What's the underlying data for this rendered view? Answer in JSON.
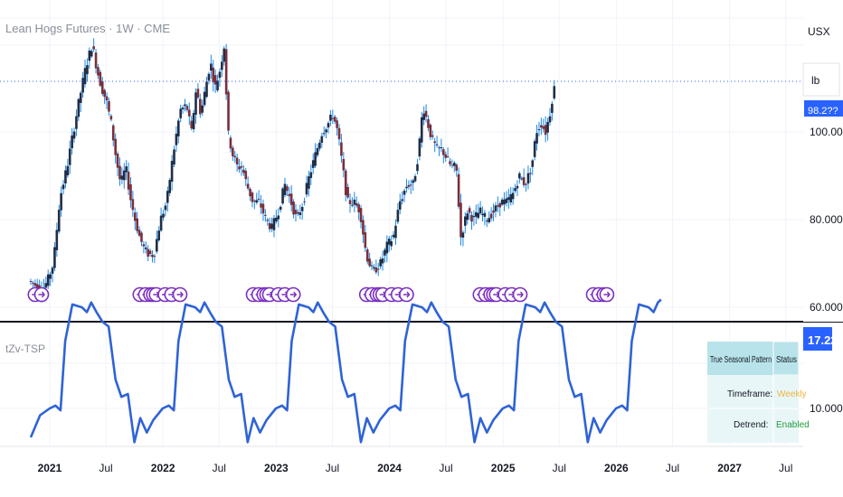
{
  "header": {
    "title": "Lean Hogs Futures · 1W · CME"
  },
  "price_axis": {
    "currency": "USX",
    "unit": "lb",
    "ticks": [
      "100.000",
      "80.000",
      "60.000"
    ],
    "badge": "98.2??"
  },
  "indicator": {
    "label": "tZv-TSP",
    "value_badge": "17.226",
    "ticks": [
      "10.000"
    ]
  },
  "time_axis": {
    "labels": [
      "2021",
      "Jul",
      "2022",
      "Jul",
      "2023",
      "Jul",
      "2024",
      "Jul",
      "2025",
      "Jul",
      "2026",
      "Jul",
      "2027",
      "Jul"
    ]
  },
  "table": {
    "header_col1": "True Seasonal Pattern",
    "header_col2": "Status",
    "rows": [
      {
        "label": "Timeframe:",
        "value": "Weekly",
        "color": "#f0b43c"
      },
      {
        "label": "Detrend:",
        "value": "Enabled",
        "color": "#1f9d3a"
      }
    ]
  },
  "colors": {
    "up_candle": "#1f2d46",
    "down_candle": "#7a2f3a",
    "wick": "#1e88e5",
    "indicator_line": "#2f63d6",
    "marker": "#7b2fbf",
    "badge_bg": "#2962ff"
  },
  "chart_data": [
    {
      "type": "candlestick",
      "title": "Lean Hogs Futures · 1W · CME",
      "yunit": "USX/lb",
      "ylim": [
        56,
        128
      ],
      "x_range": [
        "2020-11-01",
        "2027-07-31"
      ],
      "grid": true,
      "marker_icon": "circled-arrow-icon",
      "marker_count": 38,
      "path": [
        [
          "2020-11-01",
          66
        ],
        [
          "2020-12-15",
          64
        ],
        [
          "2021-01-01",
          66
        ],
        [
          "2021-01-20",
          70
        ],
        [
          "2021-02-10",
          85
        ],
        [
          "2021-03-05",
          92
        ],
        [
          "2021-03-25",
          100
        ],
        [
          "2021-04-15",
          108
        ],
        [
          "2021-05-05",
          115
        ],
        [
          "2021-05-25",
          120
        ],
        [
          "2021-06-10",
          114
        ],
        [
          "2021-06-25",
          110
        ],
        [
          "2021-07-10",
          107
        ],
        [
          "2021-07-25",
          102
        ],
        [
          "2021-08-10",
          94
        ],
        [
          "2021-08-25",
          88
        ],
        [
          "2021-09-10",
          92
        ],
        [
          "2021-09-25",
          85
        ],
        [
          "2021-10-10",
          80
        ],
        [
          "2021-10-25",
          76
        ],
        [
          "2021-11-10",
          73
        ],
        [
          "2021-11-25",
          72
        ],
        [
          "2021-12-10",
          72
        ],
        [
          "2021-12-31",
          80
        ],
        [
          "2022-01-20",
          84
        ],
        [
          "2022-02-10",
          95
        ],
        [
          "2022-03-05",
          105
        ],
        [
          "2022-03-25",
          106
        ],
        [
          "2022-04-10",
          100
        ],
        [
          "2022-04-25",
          110
        ],
        [
          "2022-05-10",
          104
        ],
        [
          "2022-05-25",
          110
        ],
        [
          "2022-06-10",
          116
        ],
        [
          "2022-06-25",
          110
        ],
        [
          "2022-07-10",
          114
        ],
        [
          "2022-07-25",
          120
        ],
        [
          "2022-08-05",
          100
        ],
        [
          "2022-08-20",
          95
        ],
        [
          "2022-09-05",
          92
        ],
        [
          "2022-09-20",
          92
        ],
        [
          "2022-10-05",
          88
        ],
        [
          "2022-10-25",
          84
        ],
        [
          "2022-11-15",
          84
        ],
        [
          "2022-12-05",
          80
        ],
        [
          "2022-12-25",
          78
        ],
        [
          "2023-01-15",
          82
        ],
        [
          "2023-02-05",
          88
        ],
        [
          "2023-02-25",
          84
        ],
        [
          "2023-03-15",
          80
        ],
        [
          "2023-04-05",
          84
        ],
        [
          "2023-04-25",
          90
        ],
        [
          "2023-05-15",
          95
        ],
        [
          "2023-06-05",
          100
        ],
        [
          "2023-06-25",
          102
        ],
        [
          "2023-07-10",
          104
        ],
        [
          "2023-07-25",
          100
        ],
        [
          "2023-08-10",
          92
        ],
        [
          "2023-08-25",
          84
        ],
        [
          "2023-09-15",
          84
        ],
        [
          "2023-10-05",
          82
        ],
        [
          "2023-10-25",
          72
        ],
        [
          "2023-11-15",
          68
        ],
        [
          "2023-12-10",
          70
        ],
        [
          "2023-12-31",
          74
        ],
        [
          "2024-01-20",
          76
        ],
        [
          "2024-02-10",
          84
        ],
        [
          "2024-03-05",
          88
        ],
        [
          "2024-03-25",
          88
        ],
        [
          "2024-04-10",
          95
        ],
        [
          "2024-04-25",
          106
        ],
        [
          "2024-05-10",
          102
        ],
        [
          "2024-05-25",
          98
        ],
        [
          "2024-06-10",
          96
        ],
        [
          "2024-06-25",
          96
        ],
        [
          "2024-07-10",
          94
        ],
        [
          "2024-07-25",
          92
        ],
        [
          "2024-08-10",
          92
        ],
        [
          "2024-08-25",
          76
        ],
        [
          "2024-09-15",
          82
        ],
        [
          "2024-10-05",
          80
        ],
        [
          "2024-10-25",
          82
        ],
        [
          "2024-11-15",
          80
        ],
        [
          "2024-12-10",
          82
        ],
        [
          "2024-12-31",
          84
        ],
        [
          "2025-01-20",
          84
        ],
        [
          "2025-02-10",
          86
        ],
        [
          "2025-03-01",
          90
        ],
        [
          "2025-03-20",
          88
        ],
        [
          "2025-04-10",
          92
        ],
        [
          "2025-04-25",
          100
        ],
        [
          "2025-05-10",
          102
        ],
        [
          "2025-05-25",
          100
        ],
        [
          "2025-06-10",
          105
        ],
        [
          "2025-06-20",
          110
        ]
      ]
    },
    {
      "type": "line",
      "name": "tZv-TSP",
      "ylim": [
        3.5,
        23
      ],
      "x_range": [
        "2020-11-01",
        "2027-07-31"
      ],
      "x": [
        "2020-11-01",
        "2020-12-01",
        "2021-01-01",
        "2021-01-20",
        "2021-02-05",
        "2021-02-20",
        "2021-03-15",
        "2021-04-15",
        "2021-05-01",
        "2021-05-15",
        "2021-06-01",
        "2021-06-20",
        "2021-07-10",
        "2021-08-01",
        "2021-08-20",
        "2021-09-10",
        "2021-10-01",
        "2021-10-20",
        "2021-11-10",
        "2021-12-01",
        "2021-12-31",
        "2022-01-20",
        "2022-02-05",
        "2022-02-20",
        "2022-03-15",
        "2022-04-15",
        "2022-05-01",
        "2022-05-15",
        "2022-06-01",
        "2022-06-20",
        "2022-07-10",
        "2022-08-01",
        "2022-08-20",
        "2022-09-10",
        "2022-10-01",
        "2022-10-20",
        "2022-11-10",
        "2022-12-01",
        "2022-12-31",
        "2023-01-20",
        "2023-02-05",
        "2023-02-20",
        "2023-03-15",
        "2023-04-15",
        "2023-05-01",
        "2023-05-15",
        "2023-06-01",
        "2023-06-20",
        "2023-07-10",
        "2023-08-01",
        "2023-08-20",
        "2023-09-10",
        "2023-10-01",
        "2023-10-20",
        "2023-11-10",
        "2023-12-01",
        "2023-12-31",
        "2024-01-20",
        "2024-02-05",
        "2024-02-20",
        "2024-03-15",
        "2024-04-15",
        "2024-05-01",
        "2024-05-15",
        "2024-06-01",
        "2024-06-20",
        "2024-07-10",
        "2024-08-01",
        "2024-08-20",
        "2024-09-10",
        "2024-10-01",
        "2024-10-20",
        "2024-11-10",
        "2024-12-01",
        "2024-12-31",
        "2025-01-20",
        "2025-02-05",
        "2025-02-20",
        "2025-03-15",
        "2025-04-15",
        "2025-05-01",
        "2025-05-15",
        "2025-06-01",
        "2025-06-20",
        "2025-07-10",
        "2025-08-01",
        "2025-08-20",
        "2025-09-10",
        "2025-10-01",
        "2025-10-20",
        "2025-11-10",
        "2025-12-01",
        "2025-12-31",
        "2026-01-20",
        "2026-02-05",
        "2026-02-20",
        "2026-03-15",
        "2026-04-15",
        "2026-05-01",
        "2026-05-15",
        "2026-05-25"
      ],
      "values": [
        7.0,
        9.3,
        10.0,
        10.3,
        9.8,
        17.0,
        20.8,
        20.5,
        20.0,
        21.0,
        20.0,
        19.0,
        18.5,
        13.0,
        11.2,
        11.5,
        6.5,
        9.0,
        7.5,
        8.8,
        10.0,
        10.3,
        9.8,
        17.0,
        20.8,
        20.5,
        20.0,
        21.0,
        20.0,
        19.0,
        18.5,
        13.0,
        11.2,
        11.5,
        6.5,
        9.0,
        7.5,
        8.8,
        10.0,
        10.3,
        9.8,
        17.0,
        20.8,
        20.5,
        20.0,
        21.0,
        20.0,
        19.0,
        18.5,
        13.0,
        11.2,
        11.5,
        6.5,
        9.0,
        7.5,
        8.8,
        10.0,
        10.3,
        9.8,
        17.0,
        20.8,
        20.5,
        20.0,
        21.0,
        20.0,
        19.0,
        18.5,
        13.0,
        11.2,
        11.5,
        6.5,
        9.0,
        7.5,
        8.8,
        10.0,
        10.3,
        9.8,
        17.0,
        20.8,
        20.5,
        20.0,
        21.0,
        20.0,
        19.0,
        18.5,
        13.0,
        11.2,
        11.5,
        6.5,
        9.0,
        7.5,
        8.8,
        10.0,
        10.3,
        9.8,
        17.0,
        20.8,
        20.5,
        20.0,
        21.0,
        21.3
      ]
    }
  ]
}
